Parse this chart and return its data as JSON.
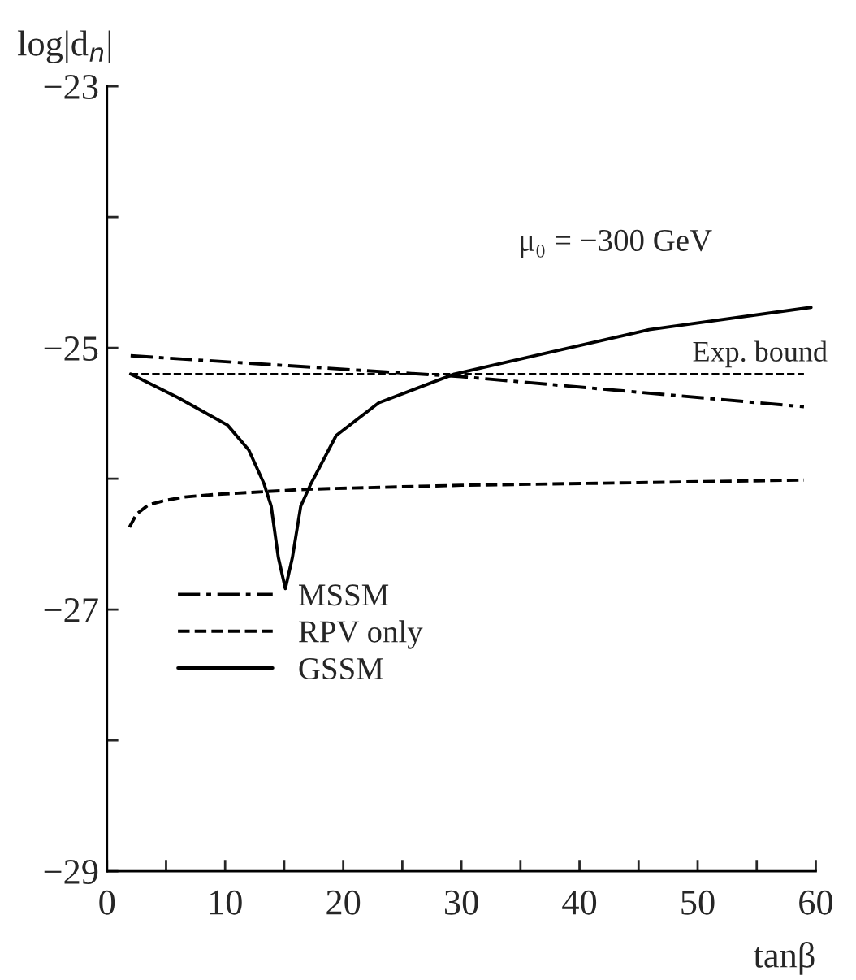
{
  "chart_data": {
    "type": "line",
    "xlabel": "tanβ",
    "ylabel": "log|d$_{n}$|",
    "xlim": [
      0,
      60
    ],
    "ylim": [
      -29,
      -23
    ],
    "xticks": [
      0,
      {
        "value": 5,
        "label": null
      },
      10,
      {
        "value": 15,
        "label": null
      },
      20,
      {
        "value": 25,
        "label": null
      },
      30,
      {
        "value": 35,
        "label": null
      },
      40,
      {
        "value": 45,
        "label": null
      },
      50,
      {
        "value": 55,
        "label": null
      },
      60
    ],
    "yticks": [
      -29,
      {
        "value": -28,
        "label": null
      },
      -27,
      {
        "value": -26,
        "label": null
      },
      -25,
      {
        "value": -24,
        "label": null
      },
      -23
    ],
    "grid": false,
    "legend": "bottom left",
    "annotations": [
      "μ₀ = −300 GeV"
    ],
    "ref_lines": [
      {
        "axis": "y",
        "value": -25.2,
        "label": "Exp. bound",
        "line_style": "dashed",
        "color": "#000000"
      }
    ],
    "series": [
      {
        "name": "MSSM",
        "color": "#000000",
        "line_style": "dashdot",
        "x": [
          2,
          30,
          59
        ],
        "values": [
          -25.06,
          -25.22,
          -25.45
        ]
      },
      {
        "name": "RPV only",
        "color": "#000000",
        "line_style": "dashed",
        "x": [
          1.9,
          2.5,
          3.5,
          4.7,
          6.5,
          9.2,
          17,
          30,
          45,
          59
        ],
        "values": [
          -26.37,
          -26.27,
          -26.2,
          -26.17,
          -26.14,
          -26.12,
          -26.08,
          -26.05,
          -26.03,
          -26.01
        ]
      },
      {
        "name": "GSSM",
        "color": "#000000",
        "line_style": "solid",
        "x": [
          2,
          6,
          10.2,
          12,
          13.3,
          13.9,
          14.5,
          15.1,
          15.7,
          16.4,
          17.2,
          19.4,
          23,
          29.4,
          36.7,
          45.9,
          59.6
        ],
        "values": [
          -25.2,
          -25.38,
          -25.59,
          -25.78,
          -26.04,
          -26.21,
          -26.6,
          -26.84,
          -26.6,
          -26.21,
          -26.05,
          -25.67,
          -25.42,
          -25.2,
          -25.05,
          -24.86,
          -24.69
        ]
      }
    ]
  }
}
